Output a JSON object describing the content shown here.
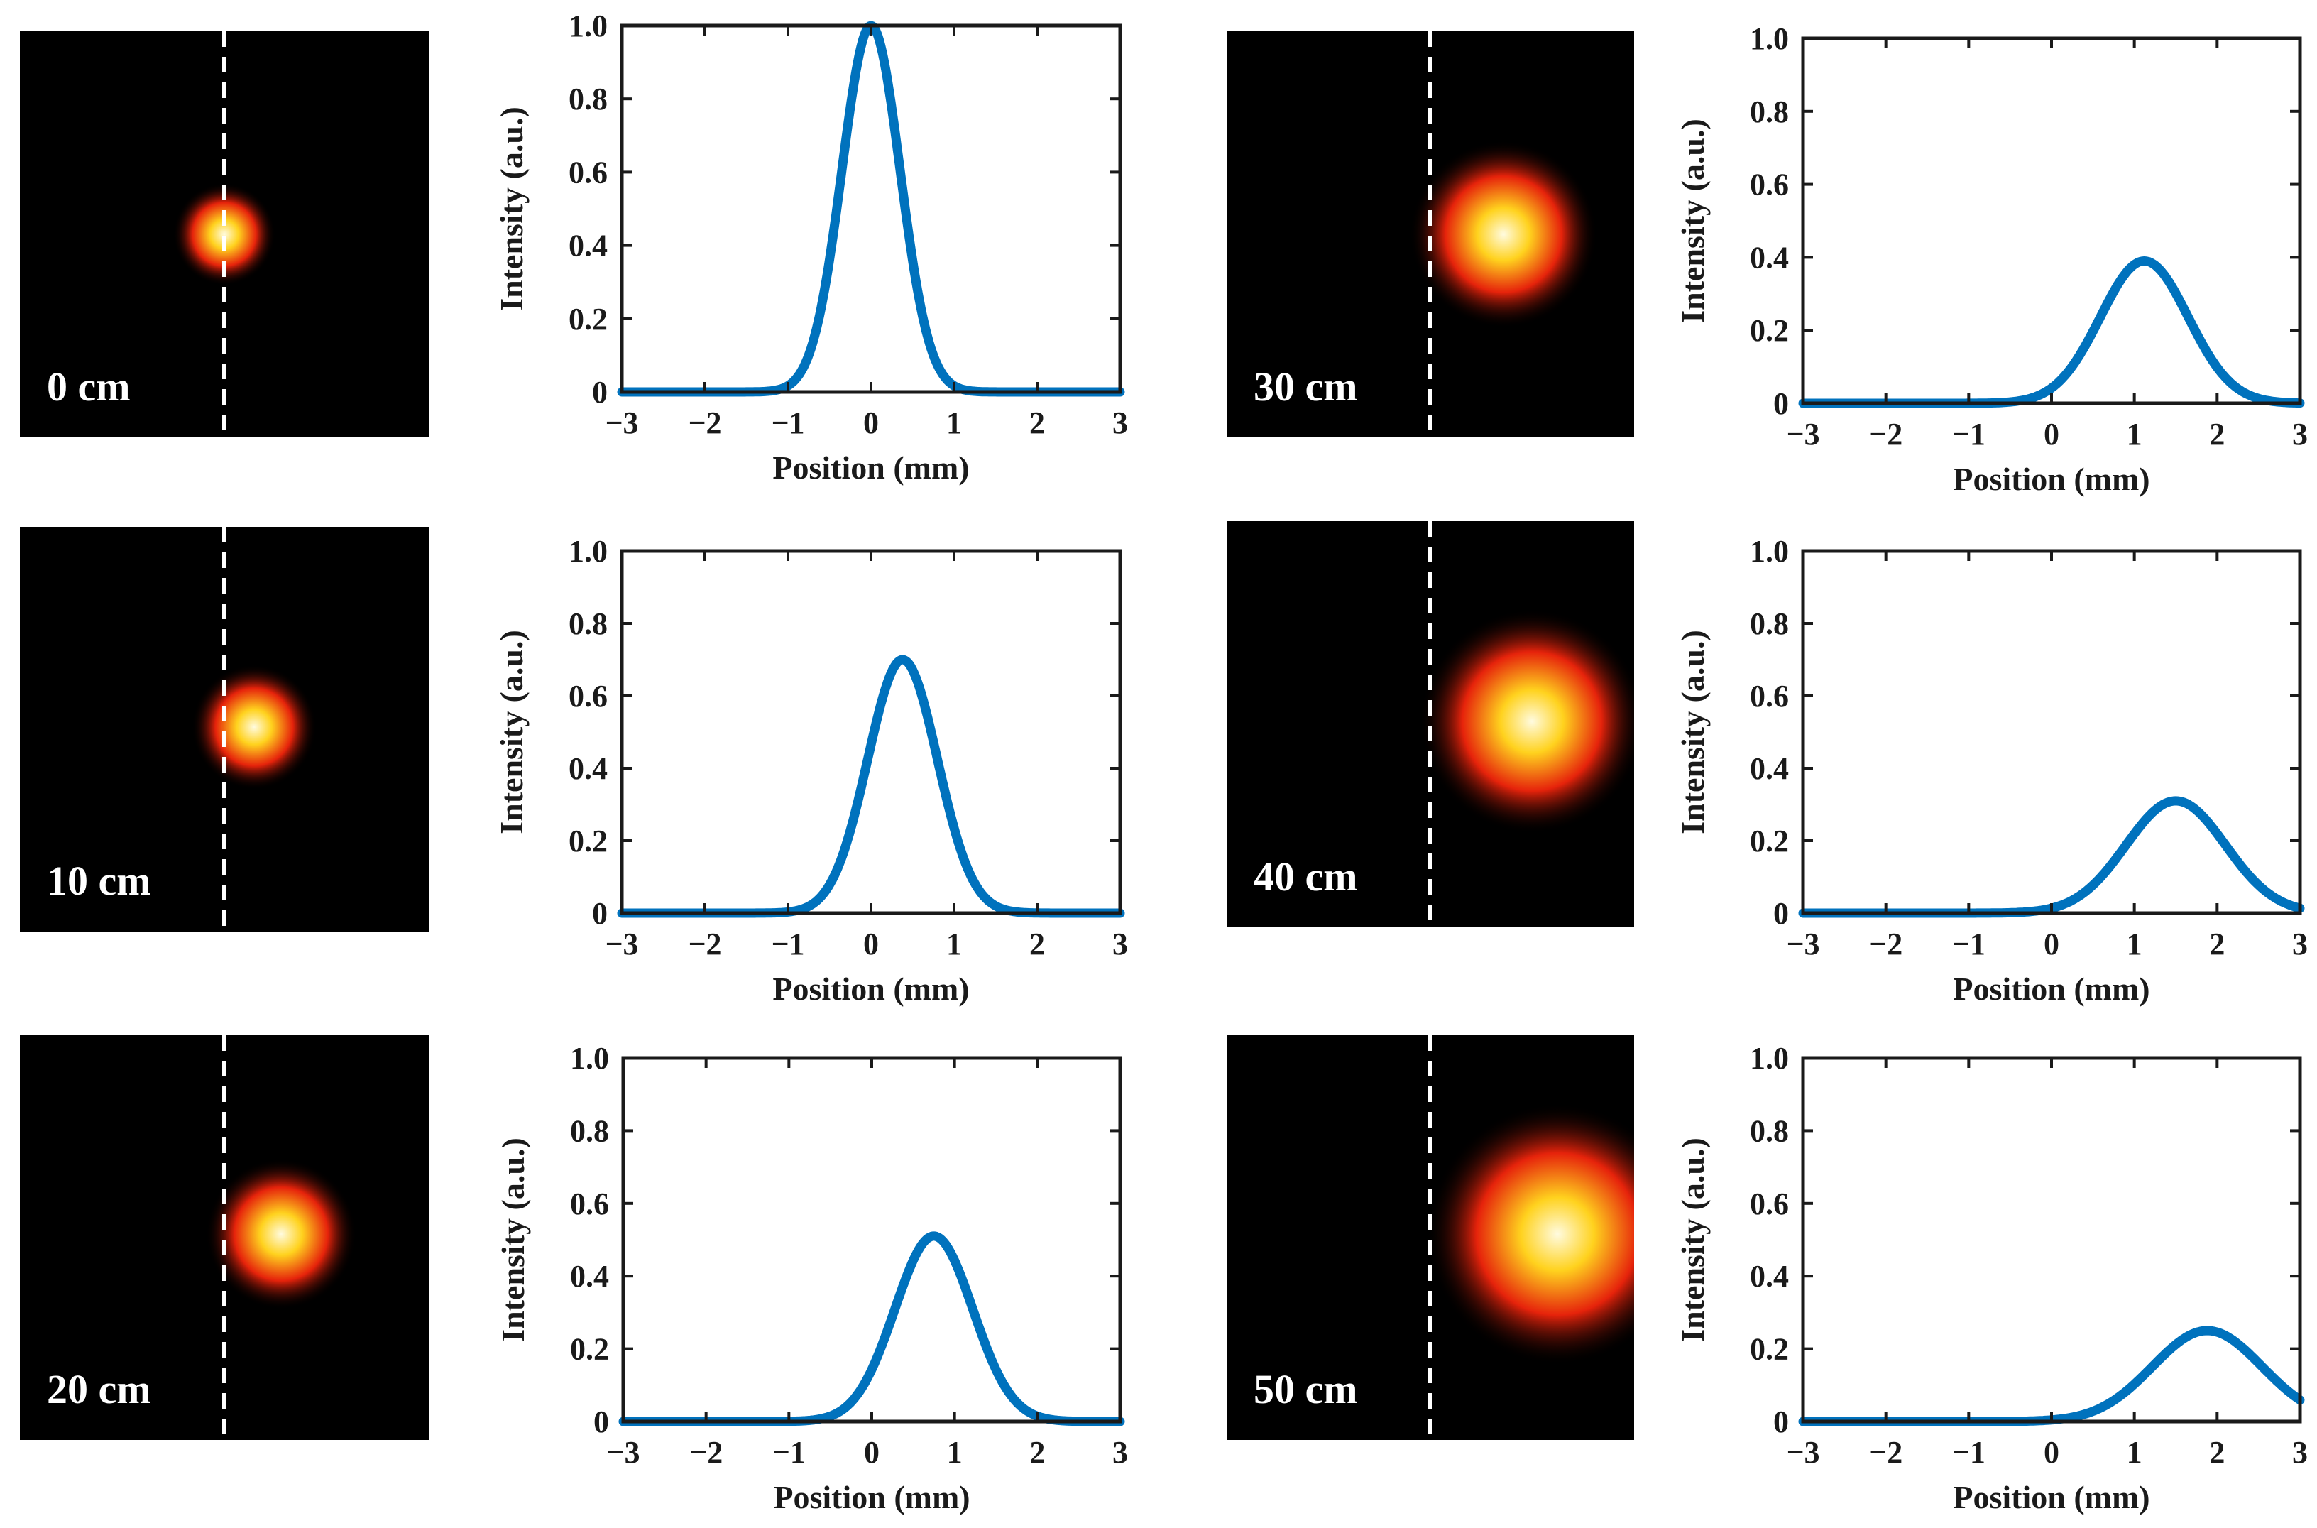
{
  "colors": {
    "line": "#0072bd",
    "axis": "#1a1a1a",
    "beam_core": "#fffbe0",
    "beam_mid": "#ffd21e",
    "beam_outer": "#e6230b",
    "background": "#000000",
    "marker_line": "#ffffff"
  },
  "chart_data": [
    {
      "type": "line",
      "label": "0 cm",
      "xlabel": "Position (mm)",
      "ylabel": "Intensity (a.u.)",
      "xlim": [
        -3,
        3
      ],
      "ylim": [
        0,
        1.0
      ],
      "xticks": [
        "−3",
        "−2",
        "−1",
        "0",
        "1",
        "2",
        "3"
      ],
      "yticks": [
        "0",
        "0.2",
        "0.4",
        "0.6",
        "0.8",
        "1.0"
      ],
      "series": [
        {
          "name": "profile",
          "peak_position": 0.0,
          "peak_intensity": 1.0,
          "sigma": 0.35
        }
      ]
    },
    {
      "type": "line",
      "label": "10 cm",
      "xlabel": "Position (mm)",
      "ylabel": "Intensity (a.u.)",
      "xlim": [
        -3,
        3
      ],
      "ylim": [
        0,
        1.0
      ],
      "xticks": [
        "−3",
        "−2",
        "−1",
        "0",
        "1",
        "2",
        "3"
      ],
      "yticks": [
        "0",
        "0.2",
        "0.4",
        "0.6",
        "0.8",
        "1.0"
      ],
      "series": [
        {
          "name": "profile",
          "peak_position": 0.38,
          "peak_intensity": 0.7,
          "sigma": 0.42
        }
      ]
    },
    {
      "type": "line",
      "label": "20 cm",
      "xlabel": "Position (mm)",
      "ylabel": "Intensity (a.u.)",
      "xlim": [
        -3,
        3
      ],
      "ylim": [
        0,
        1.0
      ],
      "xticks": [
        "−3",
        "−2",
        "−1",
        "0",
        "1",
        "2",
        "3"
      ],
      "yticks": [
        "0",
        "0.2",
        "0.4",
        "0.6",
        "0.8",
        "1.0"
      ],
      "series": [
        {
          "name": "profile",
          "peak_position": 0.75,
          "peak_intensity": 0.51,
          "sigma": 0.47
        }
      ]
    },
    {
      "type": "line",
      "label": "30 cm",
      "xlabel": "Position (mm)",
      "ylabel": "Intensity (a.u.)",
      "xlim": [
        -3,
        3
      ],
      "ylim": [
        0,
        1.0
      ],
      "xticks": [
        "−3",
        "−2",
        "−1",
        "0",
        "1",
        "2",
        "3"
      ],
      "yticks": [
        "0",
        "0.2",
        "0.4",
        "0.6",
        "0.8",
        "1.0"
      ],
      "series": [
        {
          "name": "profile",
          "peak_position": 1.12,
          "peak_intensity": 0.39,
          "sigma": 0.53
        }
      ]
    },
    {
      "type": "line",
      "label": "40 cm",
      "xlabel": "Position (mm)",
      "ylabel": "Intensity (a.u.)",
      "xlim": [
        -3,
        3
      ],
      "ylim": [
        0,
        1.0
      ],
      "xticks": [
        "−3",
        "−2",
        "−1",
        "0",
        "1",
        "2",
        "3"
      ],
      "yticks": [
        "0",
        "0.2",
        "0.4",
        "0.6",
        "0.8",
        "1.0"
      ],
      "series": [
        {
          "name": "profile",
          "peak_position": 1.5,
          "peak_intensity": 0.31,
          "sigma": 0.6
        }
      ]
    },
    {
      "type": "line",
      "label": "50 cm",
      "xlabel": "Position (mm)",
      "ylabel": "Intensity (a.u.)",
      "xlim": [
        -3,
        3
      ],
      "ylim": [
        0,
        1.0
      ],
      "xticks": [
        "−3",
        "−2",
        "−1",
        "0",
        "1",
        "2",
        "3"
      ],
      "yticks": [
        "0",
        "0.2",
        "0.4",
        "0.6",
        "0.8",
        "1.0"
      ],
      "series": [
        {
          "name": "profile",
          "peak_position": 1.88,
          "peak_intensity": 0.25,
          "sigma": 0.66
        }
      ]
    }
  ]
}
